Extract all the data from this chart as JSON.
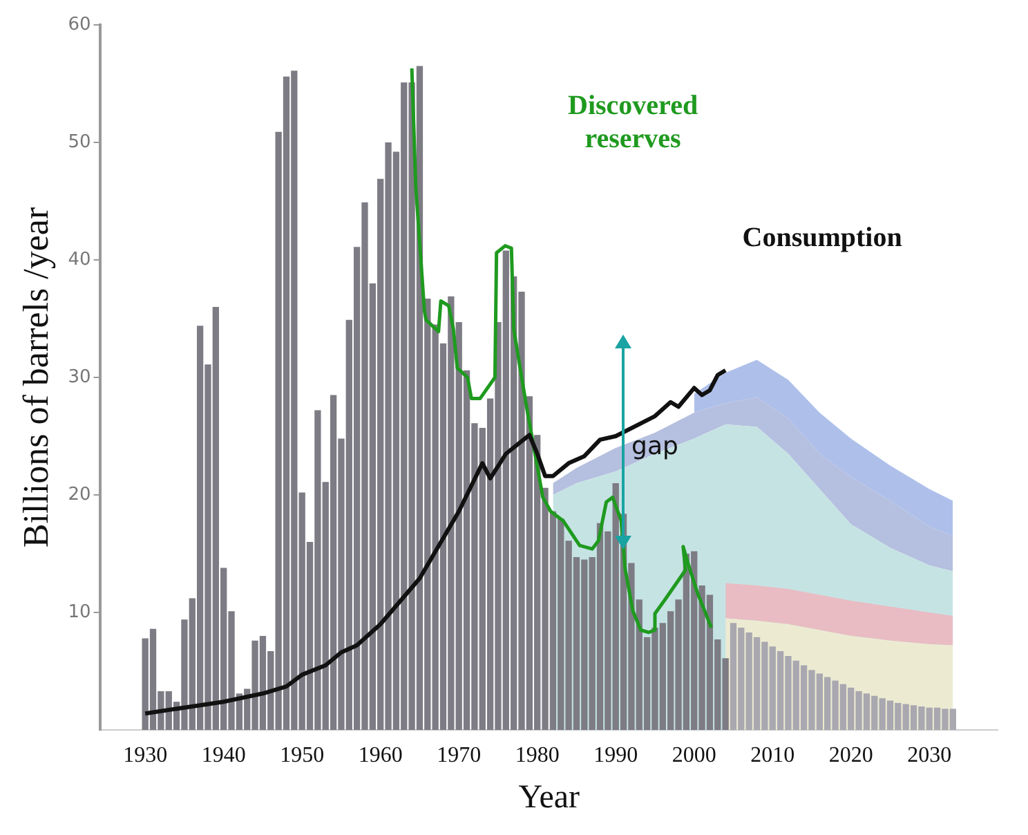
{
  "chart_data": {
    "type": "bar",
    "xlabel": "Year",
    "ylabel": "Billions of barrels /year",
    "xlim": [
      1929.5,
      2033.5
    ],
    "xticks": [
      1930,
      1940,
      1950,
      1960,
      1970,
      1980,
      1990,
      2000,
      2010,
      2020,
      2030
    ],
    "ylim": [
      0,
      60
    ],
    "yticks": [
      10,
      20,
      30,
      40,
      50,
      60
    ],
    "grid": false,
    "legend": false,
    "annotations": [
      {
        "text": "gap",
        "x": 1995,
        "y": 24
      }
    ],
    "series": [
      {
        "type": "area",
        "color": "#aec0ea",
        "x": [
          2000,
          2004,
          2008,
          2012,
          2016,
          2020,
          2025,
          2030,
          2033
        ],
        "values": [
          28.6,
          30.4,
          31.5,
          29.8,
          27.0,
          24.8,
          22.5,
          20.5,
          19.5
        ]
      },
      {
        "type": "area",
        "color": "#b5bfdf",
        "x": [
          1982,
          1985,
          1990,
          1995,
          2000,
          2004,
          2008,
          2012,
          2016,
          2020,
          2025,
          2030,
          2033
        ],
        "values": [
          21.0,
          22.3,
          24.0,
          25.3,
          27.0,
          27.8,
          28.3,
          26.5,
          23.5,
          21.5,
          19.5,
          17.3,
          16.5
        ]
      },
      {
        "type": "area",
        "color": "#c6e3e4",
        "x": [
          1982,
          1985,
          1990,
          1995,
          2000,
          2004,
          2008,
          2012,
          2016,
          2020,
          2025,
          2030,
          2033
        ],
        "values": [
          20.0,
          21.0,
          22.0,
          23.5,
          24.8,
          26.0,
          25.8,
          23.5,
          20.5,
          17.5,
          15.5,
          14.0,
          13.5
        ]
      },
      {
        "type": "area",
        "color": "#e9bcc3",
        "x": [
          2004,
          2008,
          2012,
          2016,
          2020,
          2025,
          2030,
          2033
        ],
        "values": [
          12.5,
          12.3,
          12.0,
          11.5,
          11.0,
          10.5,
          10.0,
          9.7
        ]
      },
      {
        "type": "area",
        "color": "#ecebd2",
        "x": [
          2004,
          2008,
          2012,
          2016,
          2020,
          2025,
          2030,
          2033
        ],
        "values": [
          9.5,
          9.3,
          9.0,
          8.5,
          8.0,
          7.6,
          7.3,
          7.2
        ]
      },
      {
        "color": "#7d7b84",
        "x": [
          1930,
          1931,
          1932,
          1933,
          1934,
          1935,
          1936,
          1937,
          1938,
          1939,
          1940,
          1941,
          1942,
          1943,
          1944,
          1945,
          1946,
          1947,
          1948,
          1949,
          1950,
          1951,
          1952,
          1953,
          1954,
          1955,
          1956,
          1957,
          1958,
          1959,
          1960,
          1961,
          1962,
          1963,
          1964,
          1965,
          1966,
          1967,
          1968,
          1969,
          1970,
          1971,
          1972,
          1973,
          1974,
          1975,
          1976,
          1977,
          1978,
          1979,
          1980,
          1981,
          1982,
          1983,
          1984,
          1985,
          1986,
          1987,
          1988,
          1989,
          1990,
          1991,
          1992,
          1993,
          1994,
          1995,
          1996,
          1997,
          1998,
          1999,
          2000,
          2001,
          2002,
          2003,
          2004
        ],
        "values": [
          7.8,
          8.6,
          3.3,
          3.3,
          2.4,
          9.4,
          11.2,
          34.4,
          31.1,
          36.0,
          13.8,
          10.1,
          3.1,
          3.5,
          7.6,
          8.0,
          6.7,
          50.9,
          55.6,
          56.1,
          20.2,
          16.0,
          27.2,
          21.1,
          28.5,
          24.8,
          34.9,
          41.1,
          44.9,
          38.0,
          46.9,
          50.0,
          49.2,
          55.1,
          55.1,
          56.5,
          36.7,
          34.5,
          32.9,
          36.9,
          34.7,
          30.6,
          26.1,
          25.7,
          28.2,
          34.7,
          40.8,
          38.6,
          37.3,
          28.4,
          25.1,
          20.6,
          18.6,
          18.0,
          16.1,
          14.7,
          14.5,
          14.7,
          17.6,
          16.9,
          21.0,
          18.4,
          14.2,
          11.1,
          7.9,
          8.7,
          9.1,
          10.1,
          11.1,
          15.0,
          15.2,
          12.3,
          11.5,
          7.7,
          6.1
        ]
      },
      {
        "color": "#a9a8b0",
        "x": [
          2005,
          2006,
          2007,
          2008,
          2009,
          2010,
          2011,
          2012,
          2013,
          2014,
          2015,
          2016,
          2017,
          2018,
          2019,
          2020,
          2021,
          2022,
          2023,
          2024,
          2025,
          2026,
          2027,
          2028,
          2029,
          2030,
          2031,
          2032,
          2033
        ],
        "values": [
          9.1,
          8.7,
          8.3,
          7.9,
          7.5,
          7.1,
          6.7,
          6.3,
          5.9,
          5.5,
          5.1,
          4.8,
          4.5,
          4.2,
          3.9,
          3.6,
          3.3,
          3.1,
          2.9,
          2.7,
          2.5,
          2.3,
          2.2,
          2.1,
          2.0,
          1.9,
          1.9,
          1.8,
          1.8
        ]
      },
      {
        "type": "line",
        "name": "Discovered reserves",
        "color": "#1f9a1f",
        "x": [
          1964.0,
          1964.5,
          1965.6,
          1965.8,
          1967.4,
          1967.7,
          1968.7,
          1969.3,
          1969.8,
          1971.1,
          1971.6,
          1972.7,
          1974.6,
          1974.8,
          1975.9,
          1976.7,
          1977.0,
          1978.5,
          1979.6,
          1980.7,
          1981.7,
          1983.3,
          1985.4,
          1987.0,
          1987.8,
          1988.8,
          1989.6,
          1990.7,
          1991.2,
          1992.2,
          1993.2,
          1994.2,
          1995.0,
          1995.0,
          1996.3,
          1998.9,
          1998.6,
          1999.3,
          2000.4,
          2002.2
        ],
        "values": [
          56.3,
          46.3,
          35.7,
          34.9,
          33.9,
          36.5,
          36.1,
          34.1,
          30.8,
          30.0,
          28.2,
          28.2,
          30.0,
          40.6,
          41.2,
          41.0,
          34.1,
          28.0,
          23.9,
          19.8,
          18.6,
          17.8,
          15.7,
          15.4,
          16.1,
          19.4,
          19.8,
          17.8,
          13.7,
          10.1,
          8.5,
          8.3,
          8.5,
          9.9,
          11.1,
          13.6,
          15.6,
          14.0,
          11.7,
          8.7
        ]
      },
      {
        "type": "line",
        "name": "Consumption",
        "color": "#111111",
        "x": [
          1930,
          1940,
          1945,
          1948,
          1950,
          1953,
          1955,
          1957,
          1960,
          1965,
          1970,
          1973,
          1974,
          1976,
          1979,
          1980,
          1981,
          1982,
          1984,
          1986,
          1988,
          1990,
          1995,
          1997,
          1998,
          2000,
          2001,
          2002,
          2003,
          2004
        ],
        "values": [
          1.4,
          2.4,
          3.1,
          3.7,
          4.7,
          5.5,
          6.6,
          7.2,
          9.0,
          12.9,
          18.6,
          22.7,
          21.4,
          23.5,
          25.1,
          23.5,
          21.6,
          21.6,
          22.7,
          23.3,
          24.7,
          25.0,
          26.7,
          27.9,
          27.5,
          29.1,
          28.5,
          28.9,
          30.2,
          30.6
        ]
      }
    ],
    "marker": "none",
    "line_style": "solid"
  }
}
